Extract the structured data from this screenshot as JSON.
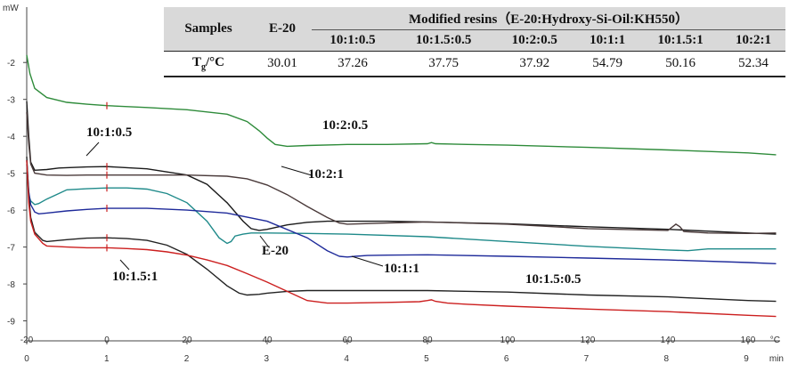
{
  "chart_data": {
    "type": "line",
    "ylabel": "mW",
    "xlabel_time": "min",
    "xlabel_temp": "°C",
    "y_ticks": [
      "-2",
      "-3",
      "-4",
      "-5",
      "-6",
      "-7",
      "-8",
      "-9"
    ],
    "time_ticks": [
      "0",
      "1",
      "2",
      "3",
      "4",
      "5",
      "6",
      "7",
      "8",
      "9"
    ],
    "temp_ticks": [
      "-20",
      "0",
      "20",
      "40",
      "60",
      "80",
      "100",
      "120",
      "140",
      "160"
    ],
    "ylim": [
      -9.3,
      -0.5
    ],
    "series": [
      {
        "name": "10:2:0.5",
        "color": "#2e8b3a",
        "x": [
          -20,
          -19.2,
          -18,
          -15,
          -10,
          -5,
          0,
          10,
          20,
          30,
          35,
          38,
          40,
          42,
          45,
          50,
          60,
          70,
          80,
          81,
          82,
          90,
          100,
          120,
          140,
          160,
          167
        ],
        "y": [
          -1.8,
          -2.3,
          -2.7,
          -2.95,
          -3.08,
          -3.13,
          -3.17,
          -3.22,
          -3.28,
          -3.4,
          -3.6,
          -3.85,
          -4.05,
          -4.22,
          -4.27,
          -4.25,
          -4.22,
          -4.22,
          -4.2,
          -4.17,
          -4.2,
          -4.22,
          -4.24,
          -4.3,
          -4.37,
          -4.45,
          -4.5
        ]
      },
      {
        "name": "10:1:0.5",
        "color": "#1a1a1a",
        "x": [
          -20,
          -19.5,
          -19,
          -18,
          -15,
          -12,
          -10,
          -5,
          0,
          5,
          10,
          20,
          25,
          30,
          34,
          36,
          38,
          40,
          45,
          50,
          55,
          60,
          70,
          80,
          100,
          120,
          140,
          160,
          167
        ],
        "y": [
          -3.05,
          -4.0,
          -4.7,
          -4.92,
          -4.9,
          -4.86,
          -4.85,
          -4.83,
          -4.82,
          -4.85,
          -4.88,
          -5.05,
          -5.3,
          -5.8,
          -6.3,
          -6.5,
          -6.55,
          -6.52,
          -6.4,
          -6.33,
          -6.3,
          -6.3,
          -6.3,
          -6.32,
          -6.37,
          -6.45,
          -6.52,
          -6.62,
          -6.65
        ]
      },
      {
        "name": "10:2:1",
        "color": "#4a3a3a",
        "x": [
          -20,
          -19.5,
          -19,
          -18,
          -15,
          -10,
          -5,
          0,
          10,
          20,
          30,
          35,
          40,
          45,
          50,
          55,
          58,
          60,
          70,
          80,
          100,
          120,
          140,
          142,
          143,
          144,
          150,
          160,
          167
        ],
        "y": [
          -3.35,
          -4.2,
          -4.75,
          -5.0,
          -5.05,
          -5.06,
          -5.05,
          -5.05,
          -5.05,
          -5.05,
          -5.08,
          -5.15,
          -5.32,
          -5.58,
          -5.9,
          -6.2,
          -6.35,
          -6.38,
          -6.35,
          -6.32,
          -6.38,
          -6.5,
          -6.55,
          -6.38,
          -6.45,
          -6.58,
          -6.62,
          -6.63,
          -6.62
        ]
      },
      {
        "name": "E-20",
        "color": "#1f8a8a",
        "x": [
          -20,
          -19.5,
          -19,
          -18,
          -17,
          -15,
          -12,
          -10,
          -5,
          0,
          5,
          10,
          15,
          20,
          25,
          28,
          30,
          31,
          32,
          34,
          36,
          40,
          50,
          60,
          80,
          100,
          120,
          140,
          145,
          150,
          160,
          167
        ],
        "y": [
          -4.75,
          -5.6,
          -5.75,
          -5.85,
          -5.82,
          -5.7,
          -5.55,
          -5.45,
          -5.42,
          -5.4,
          -5.4,
          -5.43,
          -5.55,
          -5.8,
          -6.3,
          -6.75,
          -6.9,
          -6.85,
          -6.7,
          -6.65,
          -6.62,
          -6.62,
          -6.63,
          -6.65,
          -6.72,
          -6.85,
          -6.98,
          -7.08,
          -7.1,
          -7.05,
          -7.05,
          -7.05
        ]
      },
      {
        "name": "10:1:1",
        "color": "#1e2a9a",
        "x": [
          -20,
          -19.5,
          -19,
          -18,
          -17,
          -15,
          -10,
          -5,
          0,
          10,
          20,
          30,
          40,
          50,
          55,
          58,
          60,
          62,
          65,
          70,
          80,
          100,
          120,
          140,
          160,
          167
        ],
        "y": [
          -4.65,
          -5.5,
          -5.85,
          -6.05,
          -6.1,
          -6.08,
          -6.02,
          -5.98,
          -5.95,
          -5.95,
          -6.0,
          -6.08,
          -6.3,
          -6.75,
          -7.1,
          -7.25,
          -7.27,
          -7.25,
          -7.23,
          -7.22,
          -7.21,
          -7.25,
          -7.3,
          -7.35,
          -7.42,
          -7.45
        ]
      },
      {
        "name": "10:1.5:0.5",
        "color": "#222222",
        "x": [
          -20,
          -19.5,
          -19,
          -18,
          -16,
          -15,
          -10,
          -5,
          0,
          5,
          10,
          15,
          20,
          25,
          30,
          33,
          35,
          38,
          40,
          45,
          50,
          60,
          80,
          100,
          120,
          140,
          160,
          167
        ],
        "y": [
          -4.55,
          -5.6,
          -6.2,
          -6.6,
          -6.82,
          -6.85,
          -6.8,
          -6.76,
          -6.75,
          -6.77,
          -6.82,
          -6.95,
          -7.2,
          -7.6,
          -8.05,
          -8.25,
          -8.3,
          -8.28,
          -8.25,
          -8.2,
          -8.18,
          -8.18,
          -8.18,
          -8.22,
          -8.3,
          -8.35,
          -8.45,
          -8.47
        ]
      },
      {
        "name": "10:1.5:1",
        "color": "#cc1f1f",
        "x": [
          -20,
          -19.5,
          -19,
          -18,
          -16,
          -15,
          -10,
          -5,
          0,
          5,
          10,
          15,
          20,
          25,
          30,
          35,
          40,
          45,
          48,
          50,
          55,
          60,
          70,
          78,
          80,
          81,
          82,
          85,
          90,
          100,
          120,
          140,
          160,
          167
        ],
        "y": [
          -4.65,
          -5.8,
          -6.3,
          -6.65,
          -6.9,
          -6.97,
          -7.0,
          -7.02,
          -7.02,
          -7.04,
          -7.07,
          -7.13,
          -7.22,
          -7.35,
          -7.5,
          -7.72,
          -7.95,
          -8.2,
          -8.35,
          -8.45,
          -8.52,
          -8.52,
          -8.5,
          -8.48,
          -8.45,
          -8.43,
          -8.47,
          -8.52,
          -8.55,
          -8.6,
          -8.68,
          -8.75,
          -8.85,
          -8.88
        ]
      }
    ],
    "annotations": [
      "10:2:0.5",
      "10:1:0.5",
      "10:2:1",
      "E-20",
      "10:1:1",
      "10:1.5:0.5",
      "10:1.5:1"
    ]
  },
  "table": {
    "samples_label": "Samples",
    "e20_label": "E-20",
    "group_label": "Modified resins（E-20:Hydroxy-Si-Oil:KH550）",
    "columns": [
      "10:1:0.5",
      "10:1.5:0.5",
      "10:2:0.5",
      "10:1:1",
      "10:1.5:1",
      "10:2:1"
    ],
    "row_label_main": "T",
    "row_label_sub": "g",
    "row_label_unit": "/°C",
    "e20_value": "30.01",
    "values": [
      "37.26",
      "37.75",
      "37.92",
      "54.79",
      "50.16",
      "52.34"
    ]
  }
}
